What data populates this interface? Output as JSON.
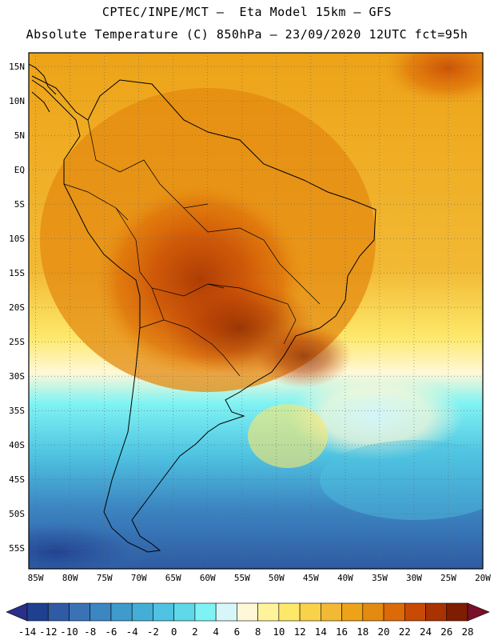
{
  "header": {
    "title_line1": "CPTEC/INPE/MCT –  Eta Model 15km – GFS",
    "title_line2": "Absolute Temperature (C) 850hPa – 23/09/2020 12UTC fct=95h"
  },
  "map": {
    "lat_range": [
      -58,
      17
    ],
    "lon_range": [
      -86,
      -20
    ],
    "lat_labels": [
      "15N",
      "10N",
      "5N",
      "EQ",
      "5S",
      "10S",
      "15S",
      "20S",
      "25S",
      "30S",
      "35S",
      "40S",
      "45S",
      "50S",
      "55S"
    ],
    "lat_values": [
      15,
      10,
      5,
      0,
      -5,
      -10,
      -15,
      -20,
      -25,
      -30,
      -35,
      -40,
      -45,
      -50,
      -55
    ],
    "lon_labels": [
      "85W",
      "80W",
      "75W",
      "70W",
      "65W",
      "60W",
      "55W",
      "50W",
      "45W",
      "40W",
      "35W",
      "30W",
      "25W",
      "20W"
    ],
    "lon_values": [
      -85,
      -80,
      -75,
      -70,
      -65,
      -60,
      -55,
      -50,
      -45,
      -40,
      -35,
      -30,
      -25,
      -20
    ]
  },
  "colorbar": {
    "labels": [
      "-14",
      "-12",
      "-10",
      "-8",
      "-6",
      "-4",
      "-2",
      "0",
      "2",
      "4",
      "6",
      "8",
      "10",
      "12",
      "14",
      "16",
      "18",
      "20",
      "22",
      "24",
      "26",
      "28"
    ],
    "colors": [
      "#1f3f8f",
      "#2e5ba3",
      "#3a73b5",
      "#3c86c2",
      "#3f9bcb",
      "#45aed6",
      "#4fc3e1",
      "#5fd9ea",
      "#7ff3f3",
      "#d6f6fa",
      "#fff8d8",
      "#fff49a",
      "#fde86a",
      "#fad24a",
      "#f2b934",
      "#eda318",
      "#e48a10",
      "#dc6a06",
      "#c94a04",
      "#a83202",
      "#7f1d01"
    ],
    "underflow_color": "#2a2f8a",
    "overflow_color": "#7a0f2a"
  }
}
